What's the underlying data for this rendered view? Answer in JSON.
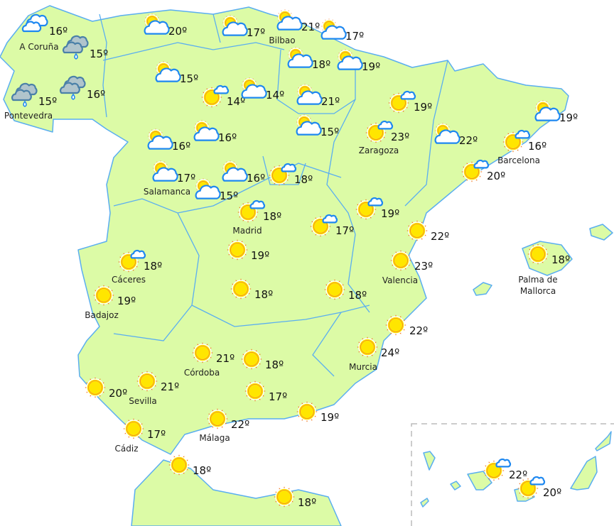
{
  "colors": {
    "land": "#dcfba6",
    "border": "#5aaef0",
    "sun": "#ffe600",
    "rays": "#f07010",
    "rain_cloud": "#b0c4cc"
  },
  "stations": [
    {
      "icon": "cloudy",
      "temp": "16º",
      "city": "A Coruña"
    },
    {
      "icon": "rain",
      "temp": "15º"
    },
    {
      "icon": "rain",
      "temp": "15º",
      "city": "Pontevedra"
    },
    {
      "icon": "rain",
      "temp": "16º"
    },
    {
      "icon": "partly-cloudy",
      "temp": "20º"
    },
    {
      "icon": "partly-cloudy",
      "temp": "17º"
    },
    {
      "icon": "partly-cloudy",
      "temp": "21º",
      "city": "Bilbao"
    },
    {
      "icon": "partly-cloudy",
      "temp": "17º"
    },
    {
      "icon": "partly-cloudy",
      "temp": "15º"
    },
    {
      "icon": "sun-small-cloud",
      "temp": "14º"
    },
    {
      "icon": "partly-cloudy",
      "temp": "14º"
    },
    {
      "icon": "partly-cloudy",
      "temp": "18º"
    },
    {
      "icon": "partly-cloudy",
      "temp": "19º"
    },
    {
      "icon": "partly-cloudy",
      "temp": "21º"
    },
    {
      "icon": "partly-cloudy",
      "temp": "15º"
    },
    {
      "icon": "sun-small-cloud",
      "temp": "19º"
    },
    {
      "icon": "sun-small-cloud",
      "temp": "23º",
      "city": "Zaragoza"
    },
    {
      "icon": "partly-cloudy",
      "temp": "22º"
    },
    {
      "icon": "partly-cloudy",
      "temp": "19º"
    },
    {
      "icon": "sun-small-cloud",
      "temp": "16º",
      "city": "Barcelona"
    },
    {
      "icon": "sun-small-cloud",
      "temp": "20º"
    },
    {
      "icon": "partly-cloudy",
      "temp": "16º"
    },
    {
      "icon": "partly-cloudy",
      "temp": "16º"
    },
    {
      "icon": "partly-cloudy",
      "temp": "17º",
      "city": "Salamanca"
    },
    {
      "icon": "partly-cloudy",
      "temp": "16º"
    },
    {
      "icon": "partly-cloudy",
      "temp": "15º"
    },
    {
      "icon": "sun-small-cloud",
      "temp": "18º"
    },
    {
      "icon": "sun-small-cloud",
      "temp": "18º",
      "city": "Madrid"
    },
    {
      "icon": "sun-small-cloud",
      "temp": "17º"
    },
    {
      "icon": "sun-small-cloud",
      "temp": "19º"
    },
    {
      "icon": "sunny",
      "temp": "22º"
    },
    {
      "icon": "sunny",
      "temp": "23º",
      "city": "Valencia"
    },
    {
      "icon": "sunny",
      "temp": "18º",
      "city": "Palma de\nMallorca"
    },
    {
      "icon": "sun-small-cloud",
      "temp": "18º",
      "city": "Cáceres"
    },
    {
      "icon": "sunny",
      "temp": "19º",
      "city": "Badajoz"
    },
    {
      "icon": "sunny",
      "temp": "19º"
    },
    {
      "icon": "sunny",
      "temp": "18º"
    },
    {
      "icon": "sunny",
      "temp": "18º"
    },
    {
      "icon": "sunny",
      "temp": "22º"
    },
    {
      "icon": "sunny",
      "temp": "24º",
      "city": "Murcia"
    },
    {
      "icon": "sunny",
      "temp": "21º",
      "city": "Córdoba"
    },
    {
      "icon": "sunny",
      "temp": "18º"
    },
    {
      "icon": "sunny",
      "temp": "17º"
    },
    {
      "icon": "sunny",
      "temp": "21º",
      "city": "Sevilla"
    },
    {
      "icon": "sunny",
      "temp": "20º"
    },
    {
      "icon": "sunny",
      "temp": "19º"
    },
    {
      "icon": "sunny",
      "temp": "22º",
      "city": "Málaga"
    },
    {
      "icon": "sunny",
      "temp": "17º",
      "city": "Cádiz"
    },
    {
      "icon": "sunny",
      "temp": "18º"
    },
    {
      "icon": "sunny",
      "temp": "18º"
    },
    {
      "icon": "sun-small-cloud",
      "temp": "22º"
    },
    {
      "icon": "sun-small-cloud",
      "temp": "20º"
    }
  ]
}
